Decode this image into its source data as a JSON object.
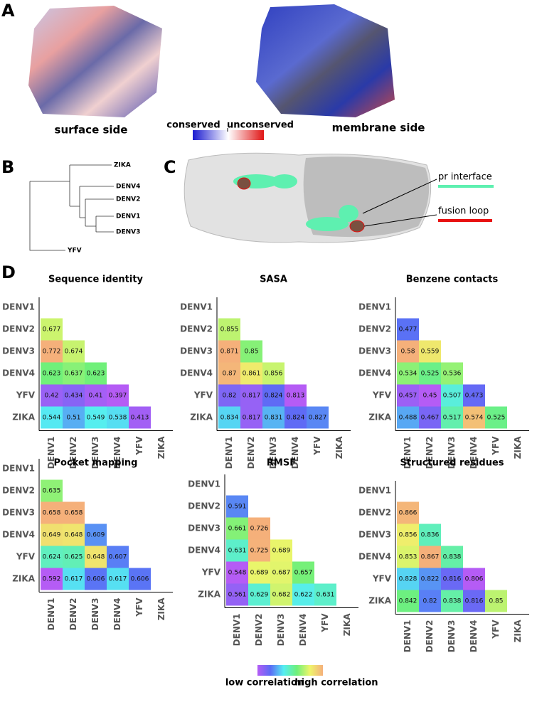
{
  "panel_labels": [
    "A",
    "B",
    "C",
    "D"
  ],
  "panel_a": {
    "left_caption": "surface side",
    "right_caption": "membrane side",
    "colorbar_labels": [
      "conserved",
      "unconserved"
    ],
    "colorbar_colors": [
      "#1a1ad0",
      "#ffffff",
      "#e01515"
    ]
  },
  "panel_b": {
    "leaves": [
      "ZIKA",
      "DENV4",
      "DENV2",
      "DENV1",
      "DENV3",
      "YFV"
    ]
  },
  "panel_c": {
    "labels": [
      "pr interface",
      "fusion loop"
    ],
    "colors": [
      "#5ef0b0",
      "#e81010"
    ]
  },
  "colorbar": {
    "low_label": "low correlation",
    "high_label": "high correlation",
    "colors": [
      "#b55cf5",
      "#5a6cf5",
      "#55eef2",
      "#6ef07a",
      "#eef56a",
      "#f5b07a"
    ]
  },
  "chart_data": [
    {
      "type": "heatmap",
      "title": "Sequence identity",
      "categories": [
        "DENV1",
        "DENV2",
        "DENV3",
        "DENV4",
        "YFV",
        "ZIKA"
      ],
      "values": [
        [],
        [
          0.677
        ],
        [
          0.772,
          0.674
        ],
        [
          0.623,
          0.637,
          0.623
        ],
        [
          0.42,
          0.434,
          0.41,
          0.397
        ],
        [
          0.544,
          0.51,
          0.549,
          0.538,
          0.413
        ]
      ]
    },
    {
      "type": "heatmap",
      "title": "SASA",
      "categories": [
        "DENV1",
        "DENV2",
        "DENV3",
        "DENV4",
        "YFV",
        "ZIKA"
      ],
      "values": [
        [],
        [
          0.855
        ],
        [
          0.871,
          0.85
        ],
        [
          0.87,
          0.861,
          0.856
        ],
        [
          0.82,
          0.817,
          0.824,
          0.813
        ],
        [
          0.834,
          0.817,
          0.831,
          0.824,
          0.827
        ]
      ]
    },
    {
      "type": "heatmap",
      "title": "Benzene contacts",
      "categories": [
        "DENV1",
        "DENV2",
        "DENV3",
        "DENV4",
        "YFV",
        "ZIKA"
      ],
      "values": [
        [],
        [
          0.477
        ],
        [
          0.58,
          0.559
        ],
        [
          0.534,
          0.525,
          0.536
        ],
        [
          0.457,
          0.45,
          0.507,
          0.473
        ],
        [
          0.488,
          0.467,
          0.517,
          0.574,
          0.525
        ]
      ]
    },
    {
      "type": "heatmap",
      "title": "Pocket mapping",
      "categories": [
        "DENV1",
        "DENV2",
        "DENV3",
        "DENV4",
        "YFV",
        "ZIKA"
      ],
      "values": [
        [],
        [
          0.635
        ],
        [
          0.658,
          0.658
        ],
        [
          0.649,
          0.648,
          0.609
        ],
        [
          0.624,
          0.625,
          0.648,
          0.607
        ],
        [
          0.592,
          0.617,
          0.606,
          0.617,
          0.606
        ]
      ]
    },
    {
      "type": "heatmap",
      "title": "RMSF",
      "categories": [
        "DENV1",
        "DENV2",
        "DENV3",
        "DENV4",
        "YFV",
        "ZIKA"
      ],
      "values": [
        [],
        [
          0.591
        ],
        [
          0.661,
          0.726
        ],
        [
          0.631,
          0.725,
          0.689
        ],
        [
          0.548,
          0.689,
          0.687,
          0.657
        ],
        [
          0.561,
          0.629,
          0.682,
          0.622,
          0.631
        ]
      ]
    },
    {
      "type": "heatmap",
      "title": "Structured residues",
      "categories": [
        "DENV1",
        "DENV2",
        "DENV3",
        "DENV4",
        "YFV",
        "ZIKA"
      ],
      "values": [
        [],
        [
          0.866
        ],
        [
          0.856,
          0.836
        ],
        [
          0.853,
          0.867,
          0.838
        ],
        [
          0.828,
          0.822,
          0.816,
          0.806
        ],
        [
          0.842,
          0.82,
          0.838,
          0.816,
          0.85
        ]
      ]
    }
  ]
}
